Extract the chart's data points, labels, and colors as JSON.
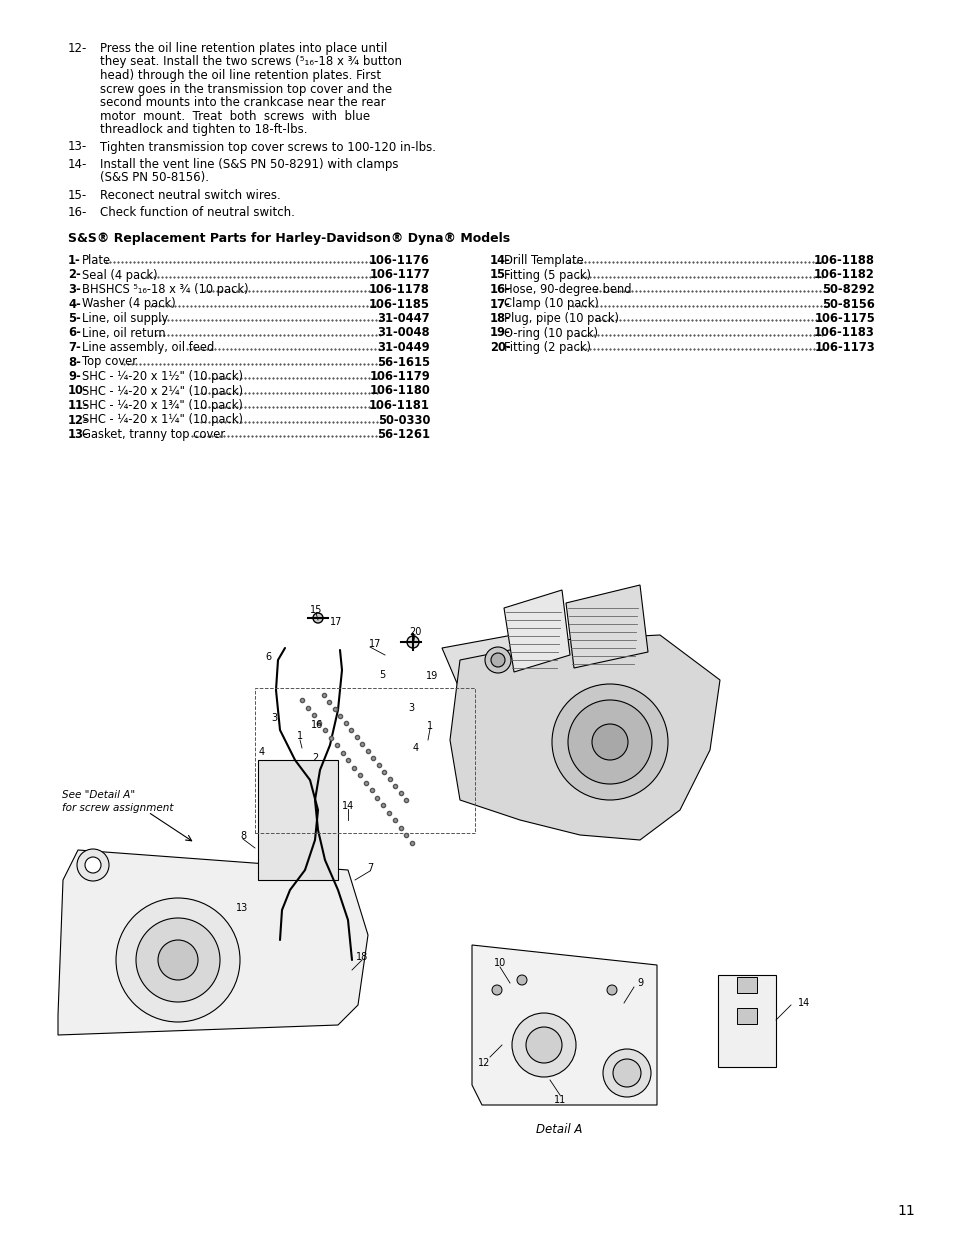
{
  "page_number": "11",
  "background_color": "#ffffff",
  "text_color": "#000000",
  "section_title": "S&S® Replacement Parts for Harley-Davidson® Dyna® Models",
  "parts_left": [
    {
      "num": "1-",
      "name": "Plate",
      "part_num": "106-1176"
    },
    {
      "num": "2-",
      "name": "Seal (4 pack)",
      "part_num": "106-1177"
    },
    {
      "num": "3-",
      "name": "BHSHCS ⁵₁₆-18 x ¾ (10 pack)",
      "part_num": "106-1178"
    },
    {
      "num": "4-",
      "name": "Washer (4 pack)",
      "part_num": "106-1185"
    },
    {
      "num": "5-",
      "name": "Line, oil supply",
      "part_num": "31-0447"
    },
    {
      "num": "6-",
      "name": "Line, oil return",
      "part_num": "31-0048"
    },
    {
      "num": "7-",
      "name": "Line assembly, oil feed",
      "part_num": "31-0449"
    },
    {
      "num": "8-",
      "name": "Top cover",
      "part_num": "56-1615"
    },
    {
      "num": "9-",
      "name": "SHC - ¼-20 x 1½\" (10 pack)",
      "part_num": "106-1179"
    },
    {
      "num": "10-",
      "name": "SHC - ¼-20 x 2¼\" (10 pack)",
      "part_num": "106-1180"
    },
    {
      "num": "11-",
      "name": "SHC - ¼-20 x 1¾\" (10 pack)",
      "part_num": "106-1181"
    },
    {
      "num": "12-",
      "name": "SHC - ¼-20 x 1¼\" (10 pack)",
      "part_num": "50-0330"
    },
    {
      "num": "13-",
      "name": "Gasket, tranny top cover",
      "part_num": "56-1261"
    }
  ],
  "parts_right": [
    {
      "num": "14-",
      "name": "Drill Template",
      "part_num": "106-1188"
    },
    {
      "num": "15-",
      "name": "Fitting (5 pack)",
      "part_num": "106-1182"
    },
    {
      "num": "16-",
      "name": "Hose, 90-degree bend",
      "part_num": "50-8292"
    },
    {
      "num": "17-",
      "name": "Clamp (10 pack)",
      "part_num": "50-8156"
    },
    {
      "num": "18-",
      "name": "Plug, pipe (10 pack)",
      "part_num": "106-1175"
    },
    {
      "num": "19-",
      "name": "O-ring (10 pack)",
      "part_num": "106-1183"
    },
    {
      "num": "20-",
      "name": "Fitting (2 pack)",
      "part_num": "106-1173"
    }
  ],
  "detail_label": "Detail A",
  "figsize": [
    9.54,
    12.35
  ],
  "dpi": 100
}
